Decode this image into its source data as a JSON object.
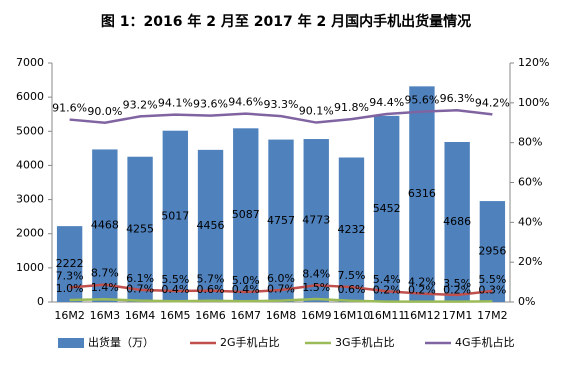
{
  "chart_data": {
    "type": "bar",
    "title": "图 1：2016 年 2 月至 2017 年 2 月国内手机出货量情况",
    "categories": [
      "16M2",
      "16M3",
      "16M4",
      "16M5",
      "16M6",
      "16M7",
      "16M8",
      "16M9",
      "16M10",
      "16M11",
      "16M12",
      "17M1",
      "17M2"
    ],
    "series": [
      {
        "name": "出货量（万）",
        "type": "bar",
        "color": "#4f81bd",
        "values": [
          2222,
          4468,
          4255,
          5017,
          4456,
          5087,
          4757,
          4773,
          4232,
          5452,
          6316,
          4686,
          2956
        ]
      },
      {
        "name": "2G手机占比",
        "type": "line",
        "axis": "y2",
        "color": "#c0504d",
        "values": [
          7.3,
          8.7,
          6.1,
          5.5,
          5.7,
          5.0,
          6.0,
          8.4,
          7.5,
          5.4,
          4.2,
          3.5,
          5.5
        ],
        "value_labels": [
          "7.3%",
          "8.7%",
          "6.1%",
          "5.5%",
          "5.7%",
          "5.0%",
          "6.0%",
          "8.4%",
          "7.5%",
          "5.4%",
          "4.2%",
          "3.5%",
          "5.5%"
        ]
      },
      {
        "name": "3G手机占比",
        "type": "line",
        "axis": "y2",
        "color": "#9bbb59",
        "values": [
          1.0,
          1.4,
          0.7,
          0.4,
          0.6,
          0.4,
          0.7,
          1.5,
          0.6,
          0.2,
          0.2,
          0.2,
          0.3
        ],
        "value_labels": [
          "1.0%",
          "1.4%",
          "0.7%",
          "0.4%",
          "0.6%",
          "0.4%",
          "0.7%",
          "1.5%",
          "0.6%",
          "0.2%",
          "0.2%",
          "0.2%",
          "0.3%"
        ]
      },
      {
        "name": "4G手机占比",
        "type": "line",
        "axis": "y2",
        "color": "#8064a2",
        "values": [
          91.6,
          90.0,
          93.2,
          94.1,
          93.6,
          94.6,
          93.3,
          90.1,
          91.8,
          94.4,
          95.6,
          96.3,
          94.2
        ],
        "value_labels": [
          "91.6%",
          "90.0%",
          "93.2%",
          "94.1%",
          "93.6%",
          "94.6%",
          "93.3%",
          "90.1%",
          "91.8%",
          "94.4%",
          "95.6%",
          "96.3%",
          "94.2%"
        ]
      }
    ],
    "ylim": [
      0,
      7000
    ],
    "yticks": [
      0,
      1000,
      2000,
      3000,
      4000,
      5000,
      6000,
      7000
    ],
    "y2lim": [
      0,
      120
    ],
    "y2ticks": [
      {
        "value": 0,
        "label": "0%"
      },
      {
        "value": 20,
        "label": "20%"
      },
      {
        "value": 40,
        "label": "40%"
      },
      {
        "value": 60,
        "label": "60%"
      },
      {
        "value": 80,
        "label": "80%"
      },
      {
        "value": 100,
        "label": "100%"
      },
      {
        "value": 120,
        "label": "120%"
      }
    ],
    "grid": false,
    "legend": "bottom"
  }
}
